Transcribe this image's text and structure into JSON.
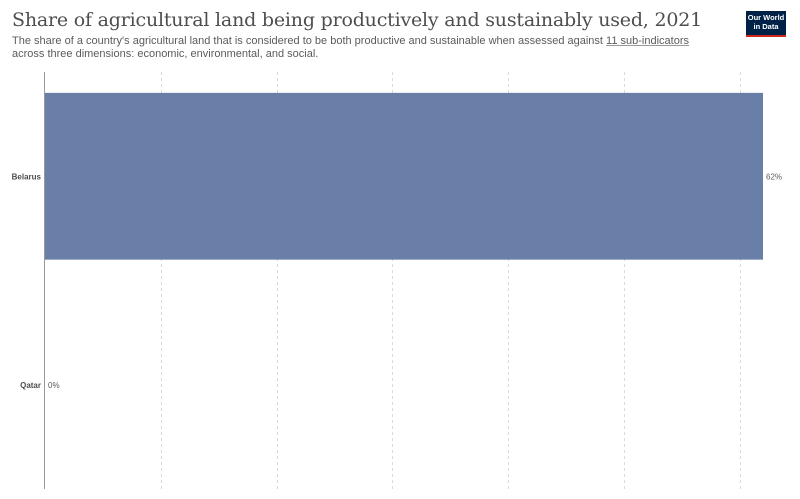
{
  "header": {
    "title": "Share of agricultural land being productively and sustainably used, 2021",
    "subtitle_before": "The share of a country's agricultural land that is considered to be both productive and sustainable when assessed against ",
    "subtitle_link": "11 sub-indicators",
    "subtitle_after": " across three dimensions: economic, environmental, and social.",
    "logo_line1": "Our World",
    "logo_line2": "in Data"
  },
  "colors": {
    "bar": "#6a7fa8",
    "grid": "#dadada",
    "axis": "#999999",
    "logo_bg": "#002147",
    "logo_accent": "#ce261e"
  },
  "chart_data": {
    "type": "bar",
    "orientation": "horizontal",
    "categories": [
      "Belarus",
      "Qatar"
    ],
    "values": [
      62,
      0
    ],
    "value_labels": [
      "62%",
      "0%"
    ],
    "unit": "%",
    "xlim": [
      0,
      62
    ],
    "grid": true
  }
}
